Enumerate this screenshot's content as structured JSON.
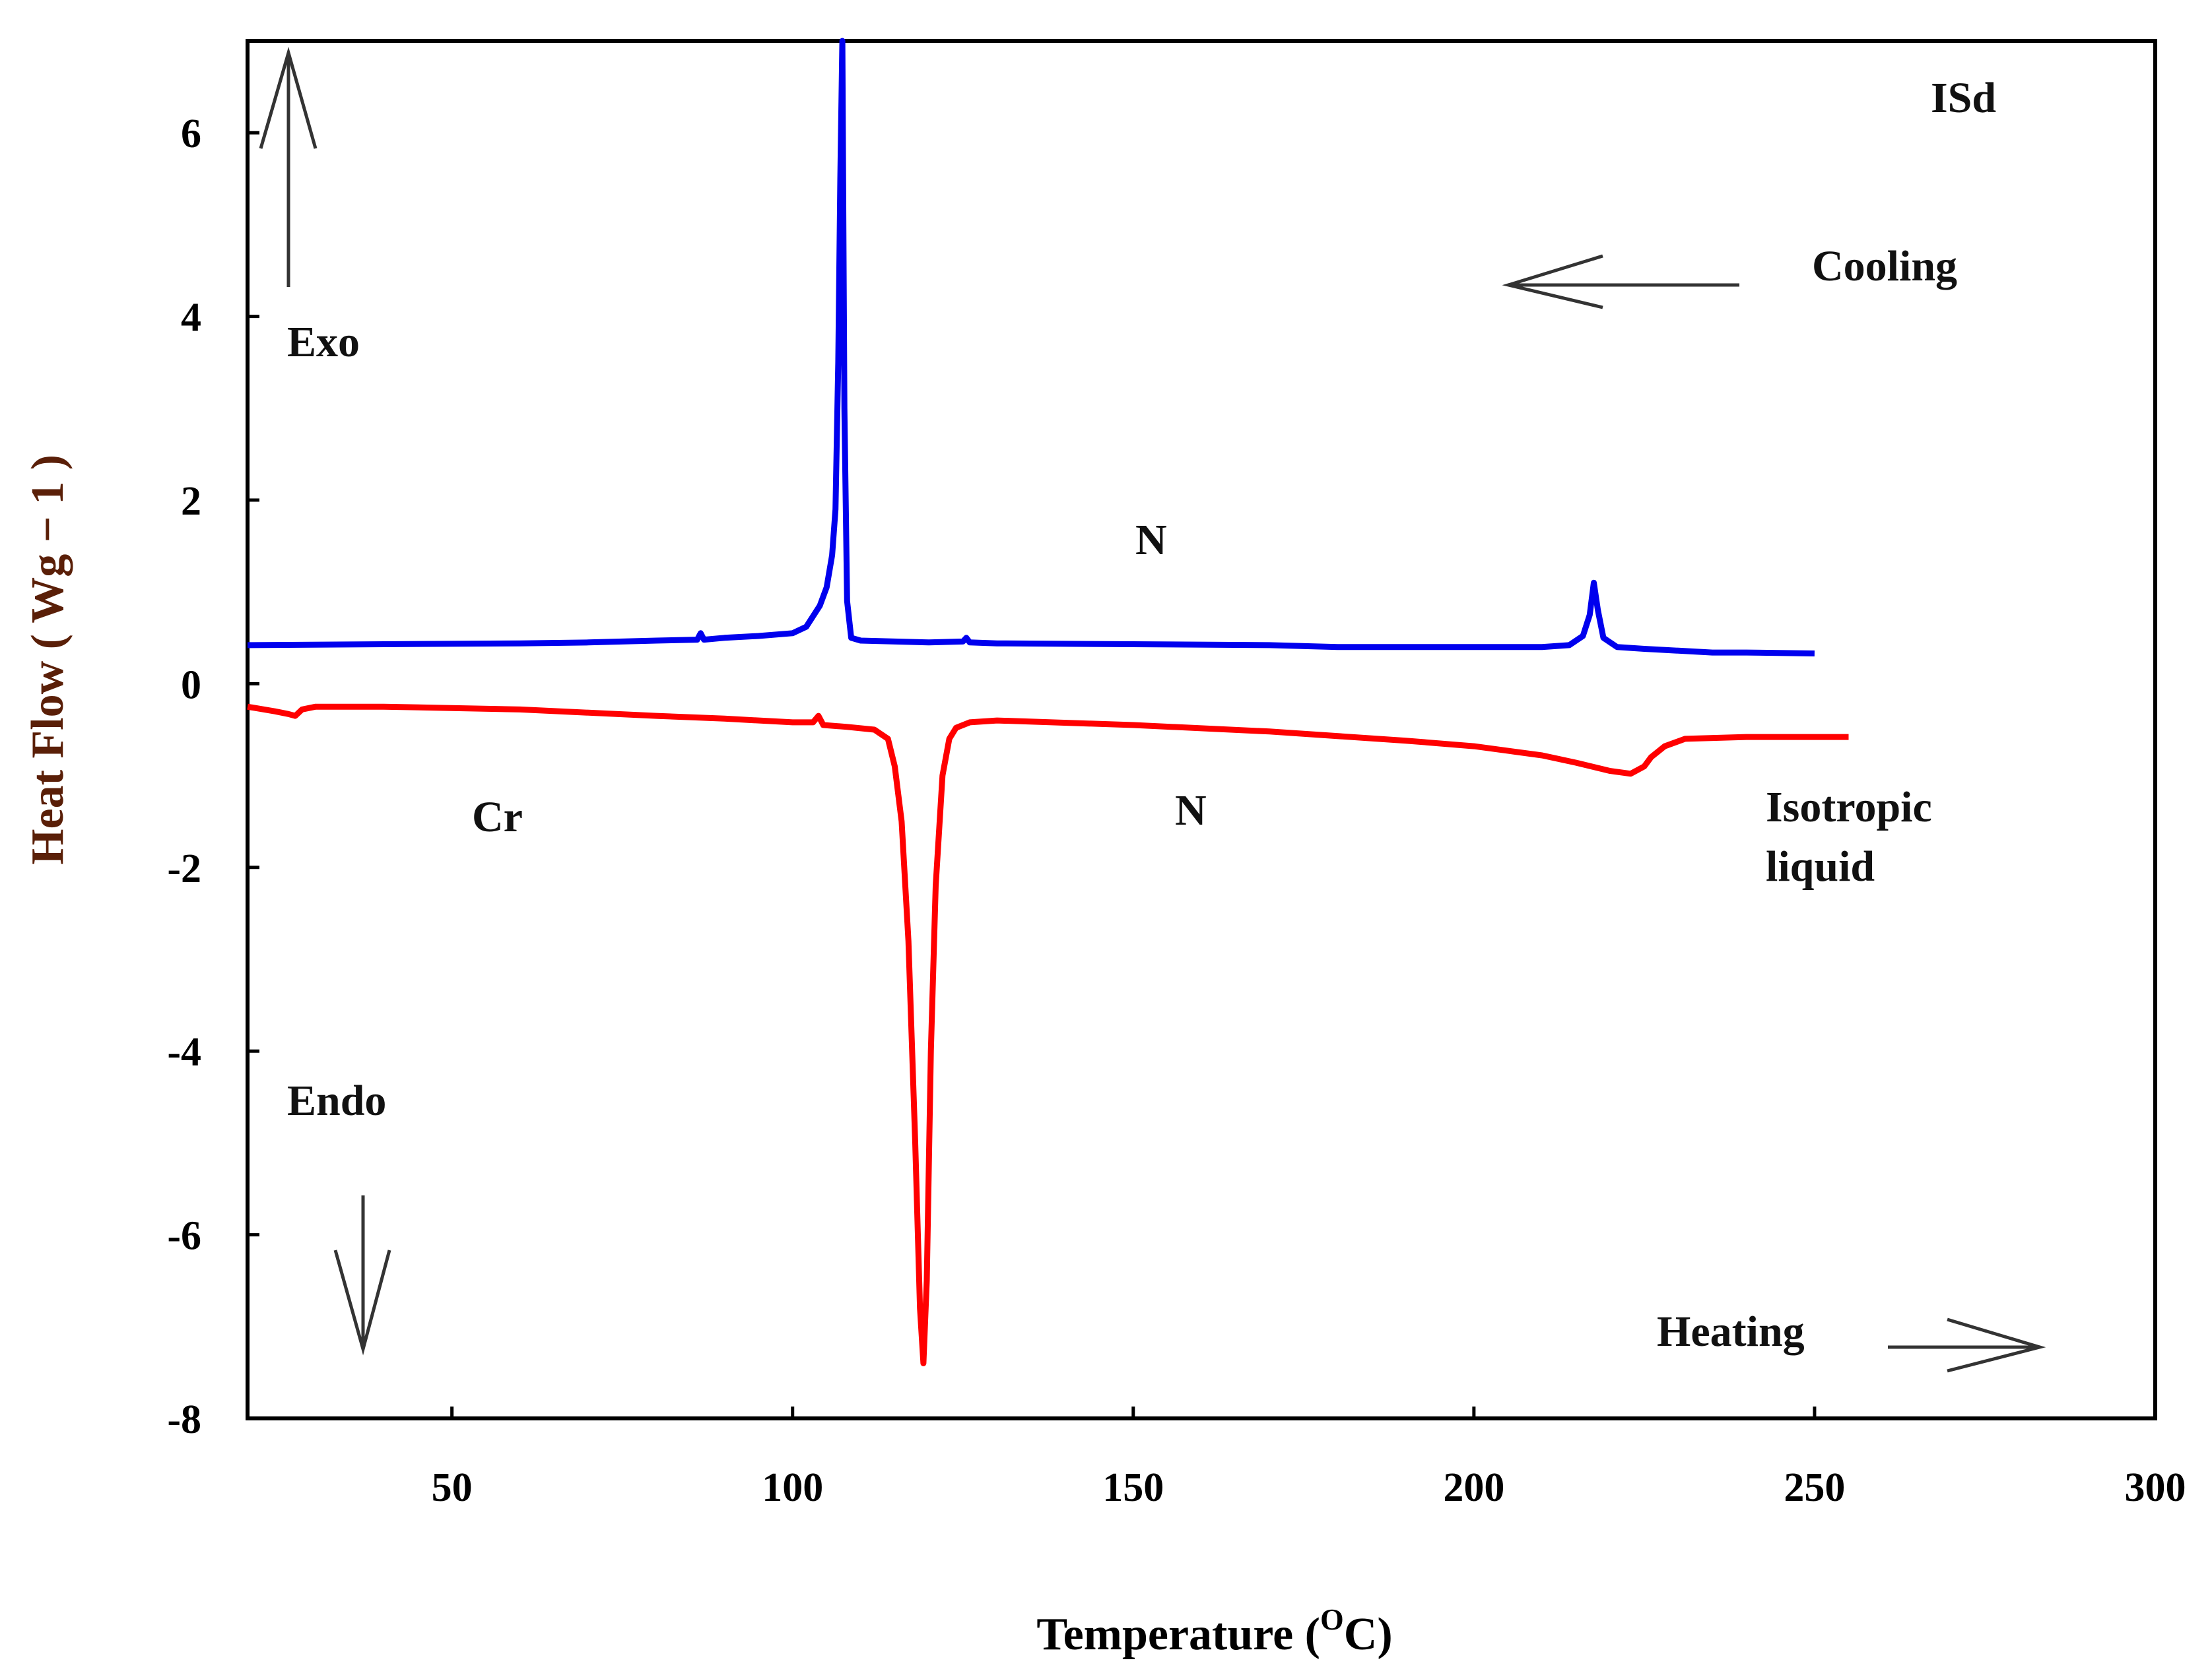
{
  "chart_data": {
    "type": "line",
    "title": "",
    "xlabel": "Temperature (",
    "xlabel_degree": "O",
    "xlabel_unit": "C)",
    "ylabel": "Heat Flow ( Wg − 1 )",
    "xlim": [
      20,
      300
    ],
    "ylim": [
      -8,
      7
    ],
    "x_ticks": [
      50,
      100,
      150,
      200,
      250,
      300
    ],
    "y_ticks": [
      6,
      4,
      2,
      0,
      -2,
      -4,
      -6,
      -8
    ],
    "grid": false,
    "legend": "none",
    "series": [
      {
        "color": "#0000ee",
        "points": [
          [
            20,
            0.42
          ],
          [
            40,
            0.43
          ],
          [
            60,
            0.44
          ],
          [
            70,
            0.45
          ],
          [
            80,
            0.47
          ],
          [
            86,
            0.48
          ],
          [
            86.5,
            0.55
          ],
          [
            87,
            0.48
          ],
          [
            90,
            0.5
          ],
          [
            95,
            0.52
          ],
          [
            100,
            0.55
          ],
          [
            102,
            0.62
          ],
          [
            104,
            0.85
          ],
          [
            105,
            1.05
          ],
          [
            105.8,
            1.4
          ],
          [
            106.3,
            1.9
          ],
          [
            106.7,
            3.5
          ],
          [
            107,
            5.5
          ],
          [
            107.3,
            7.0
          ],
          [
            107.6,
            3.0
          ],
          [
            108,
            0.9
          ],
          [
            108.6,
            0.5
          ],
          [
            110,
            0.47
          ],
          [
            120,
            0.45
          ],
          [
            125,
            0.46
          ],
          [
            125.5,
            0.5
          ],
          [
            126,
            0.45
          ],
          [
            130,
            0.44
          ],
          [
            150,
            0.43
          ],
          [
            170,
            0.42
          ],
          [
            180,
            0.4
          ],
          [
            190,
            0.4
          ],
          [
            200,
            0.4
          ],
          [
            210,
            0.4
          ],
          [
            214,
            0.42
          ],
          [
            216,
            0.52
          ],
          [
            217,
            0.75
          ],
          [
            217.6,
            1.1
          ],
          [
            218.2,
            0.8
          ],
          [
            219,
            0.5
          ],
          [
            221,
            0.4
          ],
          [
            225,
            0.38
          ],
          [
            230,
            0.36
          ],
          [
            235,
            0.34
          ],
          [
            240,
            0.34
          ],
          [
            250,
            0.33
          ]
        ]
      },
      {
        "color": "#ff0000",
        "points": [
          [
            20,
            -0.25
          ],
          [
            24,
            -0.3
          ],
          [
            26,
            -0.33
          ],
          [
            27,
            -0.35
          ],
          [
            28,
            -0.28
          ],
          [
            30,
            -0.25
          ],
          [
            40,
            -0.25
          ],
          [
            60,
            -0.28
          ],
          [
            80,
            -0.35
          ],
          [
            90,
            -0.38
          ],
          [
            100,
            -0.42
          ],
          [
            103,
            -0.42
          ],
          [
            103.8,
            -0.35
          ],
          [
            104.5,
            -0.45
          ],
          [
            108,
            -0.47
          ],
          [
            112,
            -0.5
          ],
          [
            114,
            -0.6
          ],
          [
            115,
            -0.9
          ],
          [
            116,
            -1.5
          ],
          [
            117,
            -2.8
          ],
          [
            118,
            -5.0
          ],
          [
            118.7,
            -6.8
          ],
          [
            119.2,
            -7.4
          ],
          [
            119.7,
            -6.5
          ],
          [
            120.3,
            -4.0
          ],
          [
            121,
            -2.2
          ],
          [
            122,
            -1.0
          ],
          [
            123,
            -0.6
          ],
          [
            124,
            -0.48
          ],
          [
            126,
            -0.42
          ],
          [
            130,
            -0.4
          ],
          [
            150,
            -0.45
          ],
          [
            170,
            -0.52
          ],
          [
            190,
            -0.62
          ],
          [
            200,
            -0.68
          ],
          [
            210,
            -0.78
          ],
          [
            215,
            -0.86
          ],
          [
            220,
            -0.95
          ],
          [
            223,
            -0.98
          ],
          [
            225,
            -0.9
          ],
          [
            226,
            -0.8
          ],
          [
            228,
            -0.68
          ],
          [
            231,
            -0.6
          ],
          [
            240,
            -0.58
          ],
          [
            255,
            -0.58
          ]
        ]
      }
    ],
    "annotations": {
      "sample": "ISd",
      "cooling": "Cooling",
      "heating": "Heating",
      "exo": "Exo",
      "endo": "Endo",
      "n_upper": "N",
      "n_lower": "N",
      "cr": "Cr",
      "isotropic_line1": "Isotropic",
      "isotropic_line2": "liquid"
    }
  }
}
